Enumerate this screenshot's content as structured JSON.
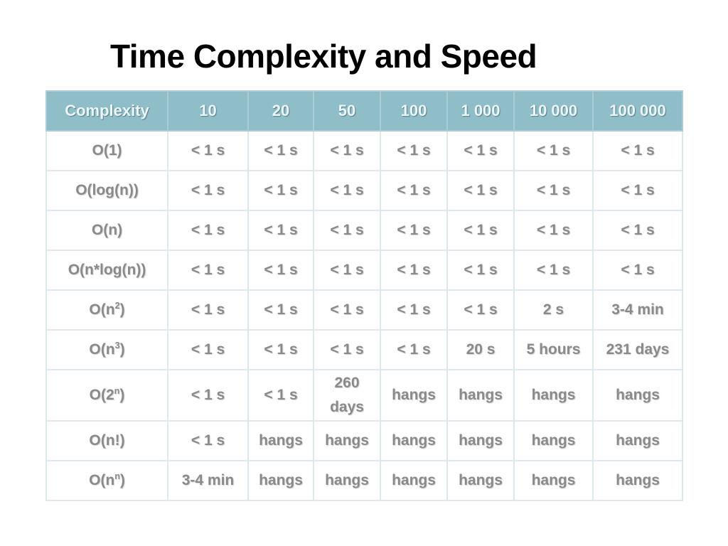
{
  "slide": {
    "title": "Time Complexity and Speed"
  },
  "table": {
    "headers": [
      "Complexity",
      "10",
      "20",
      "50",
      "100",
      "1 000",
      "10 000",
      "100 000"
    ],
    "rows": [
      {
        "label": "O(1)",
        "label_base": "O(1)",
        "label_sup": "",
        "label_close": "",
        "cells": [
          "< 1 s",
          "< 1 s",
          "< 1 s",
          "< 1 s",
          "< 1 s",
          "< 1 s",
          "< 1 s"
        ]
      },
      {
        "label": "O(log(n))",
        "label_base": "O(log(n))",
        "label_sup": "",
        "label_close": "",
        "cells": [
          "< 1 s",
          "< 1 s",
          "< 1 s",
          "< 1 s",
          "< 1 s",
          "< 1 s",
          "< 1 s"
        ]
      },
      {
        "label": "O(n)",
        "label_base": "O(n)",
        "label_sup": "",
        "label_close": "",
        "cells": [
          "< 1 s",
          "< 1 s",
          "< 1 s",
          "< 1 s",
          "< 1 s",
          "< 1 s",
          "< 1 s"
        ]
      },
      {
        "label": "O(n*log(n))",
        "label_base": "O(n*log(n))",
        "label_sup": "",
        "label_close": "",
        "cells": [
          "< 1 s",
          "< 1 s",
          "< 1 s",
          "< 1 s",
          "< 1 s",
          "< 1 s",
          "< 1 s"
        ]
      },
      {
        "label": "O(n2)",
        "label_base": "O(n",
        "label_sup": "2",
        "label_close": ")",
        "cells": [
          "< 1 s",
          "< 1 s",
          "< 1 s",
          "< 1 s",
          "< 1 s",
          "2 s",
          "3-4 min"
        ]
      },
      {
        "label": "O(n3)",
        "label_base": "O(n",
        "label_sup": "3",
        "label_close": ")",
        "cells": [
          "< 1 s",
          "< 1 s",
          "< 1 s",
          "< 1 s",
          "20 s",
          "5 hours",
          "231 days"
        ]
      },
      {
        "label": "O(2n)",
        "label_base": "O(2",
        "label_sup": "n",
        "label_close": ")",
        "cells": [
          "< 1 s",
          "< 1 s",
          "260 days",
          "hangs",
          "hangs",
          "hangs",
          "hangs"
        ]
      },
      {
        "label": "O(n!)",
        "label_base": "O(n!)",
        "label_sup": "",
        "label_close": "",
        "cells": [
          "< 1 s",
          "hangs",
          "hangs",
          "hangs",
          "hangs",
          "hangs",
          "hangs"
        ]
      },
      {
        "label": "O(nn)",
        "label_base": "O(n",
        "label_sup": "n",
        "label_close": ")",
        "cells": [
          "3-4 min",
          "hangs",
          "hangs",
          "hangs",
          "hangs",
          "hangs",
          "hangs"
        ]
      }
    ]
  }
}
